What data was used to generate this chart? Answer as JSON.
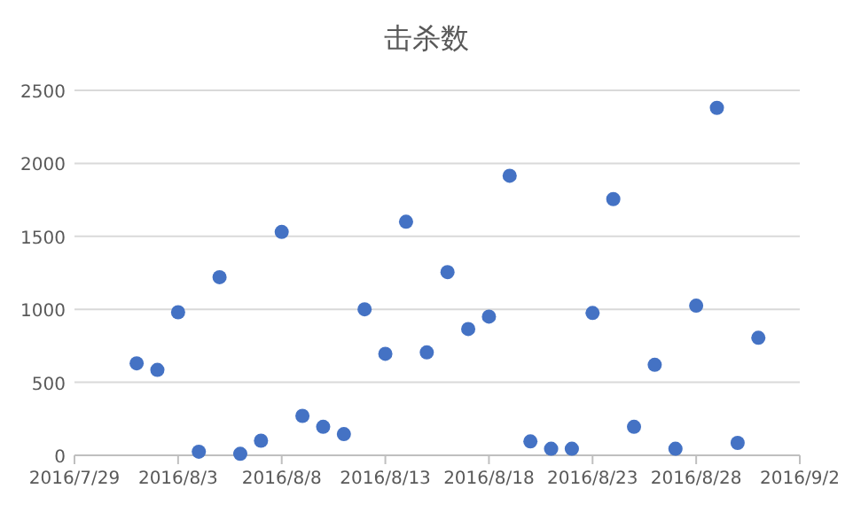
{
  "chart_data": {
    "type": "scatter",
    "title": "击杀数",
    "x": [
      "2016-08-01",
      "2016-08-02",
      "2016-08-03",
      "2016-08-04",
      "2016-08-05",
      "2016-08-06",
      "2016-08-07",
      "2016-08-08",
      "2016-08-09",
      "2016-08-10",
      "2016-08-11",
      "2016-08-12",
      "2016-08-13",
      "2016-08-14",
      "2016-08-15",
      "2016-08-16",
      "2016-08-17",
      "2016-08-18",
      "2016-08-19",
      "2016-08-20",
      "2016-08-21",
      "2016-08-22",
      "2016-08-23",
      "2016-08-24",
      "2016-08-25",
      "2016-08-26",
      "2016-08-27",
      "2016-08-28",
      "2016-08-29",
      "2016-08-30",
      "2016-08-31"
    ],
    "values": [
      630,
      585,
      980,
      25,
      1220,
      10,
      100,
      1530,
      270,
      195,
      145,
      1000,
      695,
      1600,
      705,
      1255,
      865,
      950,
      1915,
      95,
      45,
      45,
      975,
      1755,
      195,
      620,
      45,
      1025,
      2380,
      85,
      805
    ],
    "color": "#4472c4",
    "marker": "circle",
    "xlim": [
      "2016-07-29",
      "2016-09-02"
    ],
    "xticks": [
      {
        "value": "2016-07-29",
        "label": "2016/7/29"
      },
      {
        "value": "2016-08-03",
        "label": "2016/8/3"
      },
      {
        "value": "2016-08-08",
        "label": "2016/8/8"
      },
      {
        "value": "2016-08-13",
        "label": "2016/8/13"
      },
      {
        "value": "2016-08-18",
        "label": "2016/8/18"
      },
      {
        "value": "2016-08-23",
        "label": "2016/8/23"
      },
      {
        "value": "2016-08-28",
        "label": "2016/8/28"
      },
      {
        "value": "2016-09-02",
        "label": "2016/9/2"
      }
    ],
    "ylim": [
      0,
      2500
    ],
    "yticks": [
      0,
      500,
      1000,
      1500,
      2000,
      2500
    ],
    "grid": "y"
  }
}
